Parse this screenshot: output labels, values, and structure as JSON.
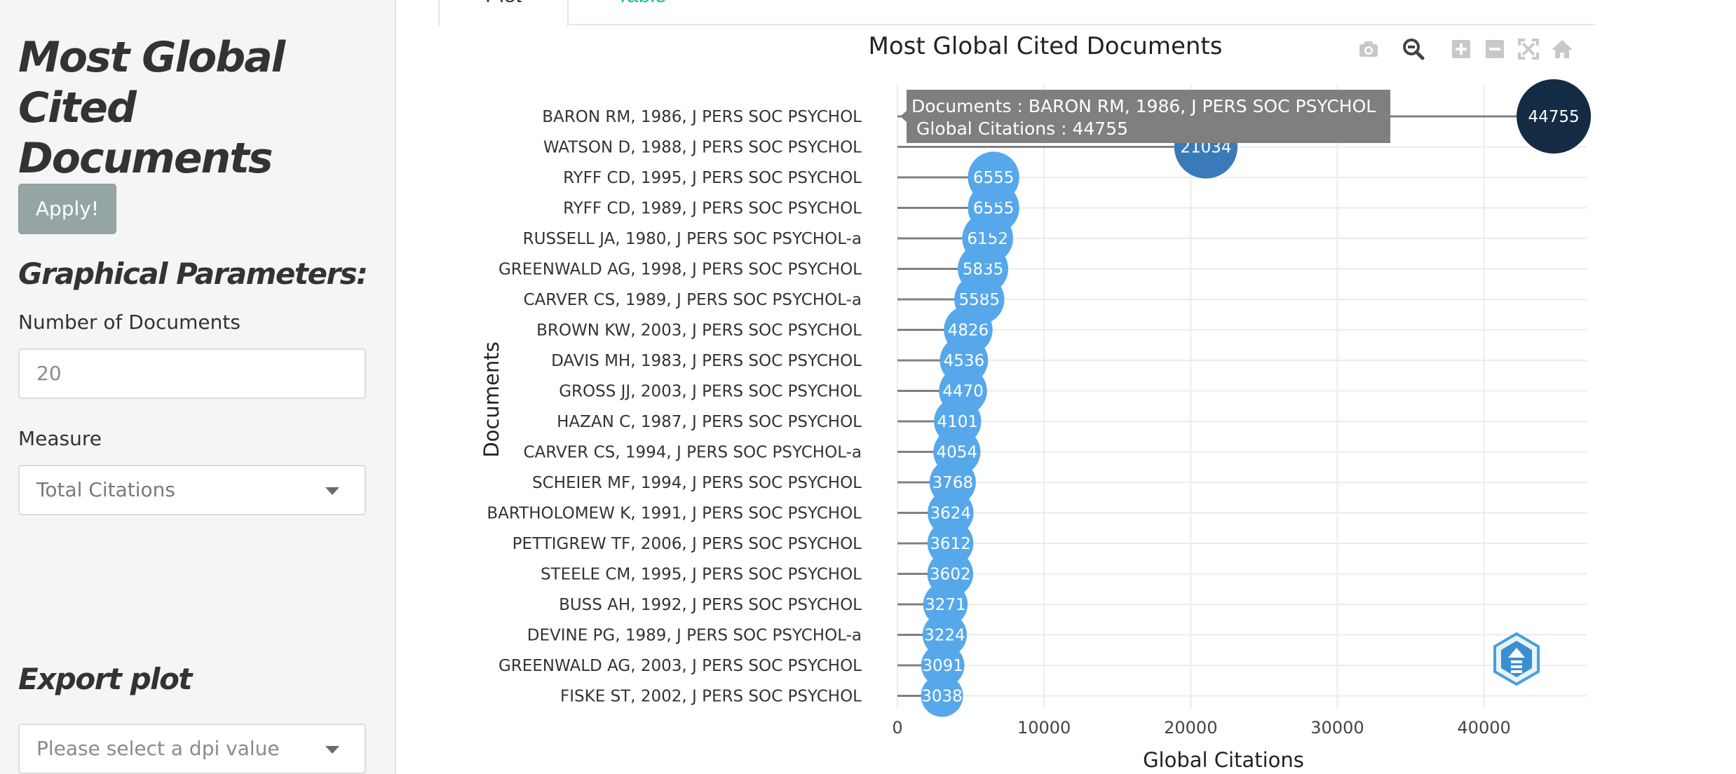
{
  "sidebar": {
    "title": "Most Global Cited Documents",
    "apply_label": "Apply!",
    "graphical_heading": "Graphical Parameters:",
    "num_docs_label": "Number of Documents",
    "num_docs_value": "20",
    "measure_label": "Measure",
    "measure_value": "Total Citations",
    "export_heading": "Export plot",
    "dpi_placeholder": "Please select a dpi value"
  },
  "tabs": [
    {
      "label": "Plot",
      "active": true
    },
    {
      "label": "Table",
      "active": false
    }
  ],
  "modebar": [
    "camera-icon",
    "zoom-icon",
    "zoom-in-icon",
    "zoom-out-icon",
    "autoscale-icon",
    "home-icon"
  ],
  "tooltip": {
    "line1": "Documents :  BARON RM, 1986, J PERS SOC PSYCHOL",
    "line2": "Global Citations :  44755",
    "bg_color": "#7f7f7f"
  },
  "chart_data": {
    "type": "scatter",
    "title": "Most Global Cited Documents",
    "xlabel": "Global Citations",
    "ylabel": "Documents",
    "xlim": [
      0,
      47000
    ],
    "xticks": [
      0,
      10000,
      20000,
      30000,
      40000
    ],
    "grid": true,
    "colors": {
      "low": "#56a8ea",
      "mid": "#3a7ab8",
      "high": "#132b43",
      "stem": "#808080"
    },
    "categories": [
      "BARON RM, 1986, J PERS SOC PSYCHOL",
      "WATSON D, 1988, J PERS SOC PSYCHOL",
      "RYFF CD, 1995, J PERS SOC PSYCHOL",
      "RYFF CD, 1989, J PERS SOC PSYCHOL",
      "RUSSELL JA, 1980, J PERS SOC PSYCHOL-a",
      "GREENWALD AG, 1998, J PERS SOC PSYCHOL",
      "CARVER CS, 1989, J PERS SOC PSYCHOL-a",
      "BROWN KW, 2003, J PERS SOC PSYCHOL",
      "DAVIS MH, 1983, J PERS SOC PSYCHOL",
      "GROSS JJ, 2003, J PERS SOC PSYCHOL",
      "HAZAN C, 1987, J PERS SOC PSYCHOL",
      "CARVER CS, 1994, J PERS SOC PSYCHOL-a",
      "SCHEIER MF, 1994, J PERS SOC PSYCHOL",
      "BARTHOLOMEW K, 1991, J PERS SOC PSYCHOL",
      "PETTIGREW TF, 2006, J PERS SOC PSYCHOL",
      "STEELE CM, 1995, J PERS SOC PSYCHOL",
      "BUSS AH, 1992, J PERS SOC PSYCHOL",
      "DEVINE PG, 1989, J PERS SOC PSYCHOL-a",
      "GREENWALD AG, 2003, J PERS SOC PSYCHOL",
      "FISKE ST, 2002, J PERS SOC PSYCHOL"
    ],
    "values": [
      44755,
      21034,
      6555,
      6555,
      6152,
      5835,
      5585,
      4826,
      4536,
      4470,
      4101,
      4054,
      3768,
      3624,
      3612,
      3602,
      3271,
      3224,
      3091,
      3038
    ]
  }
}
